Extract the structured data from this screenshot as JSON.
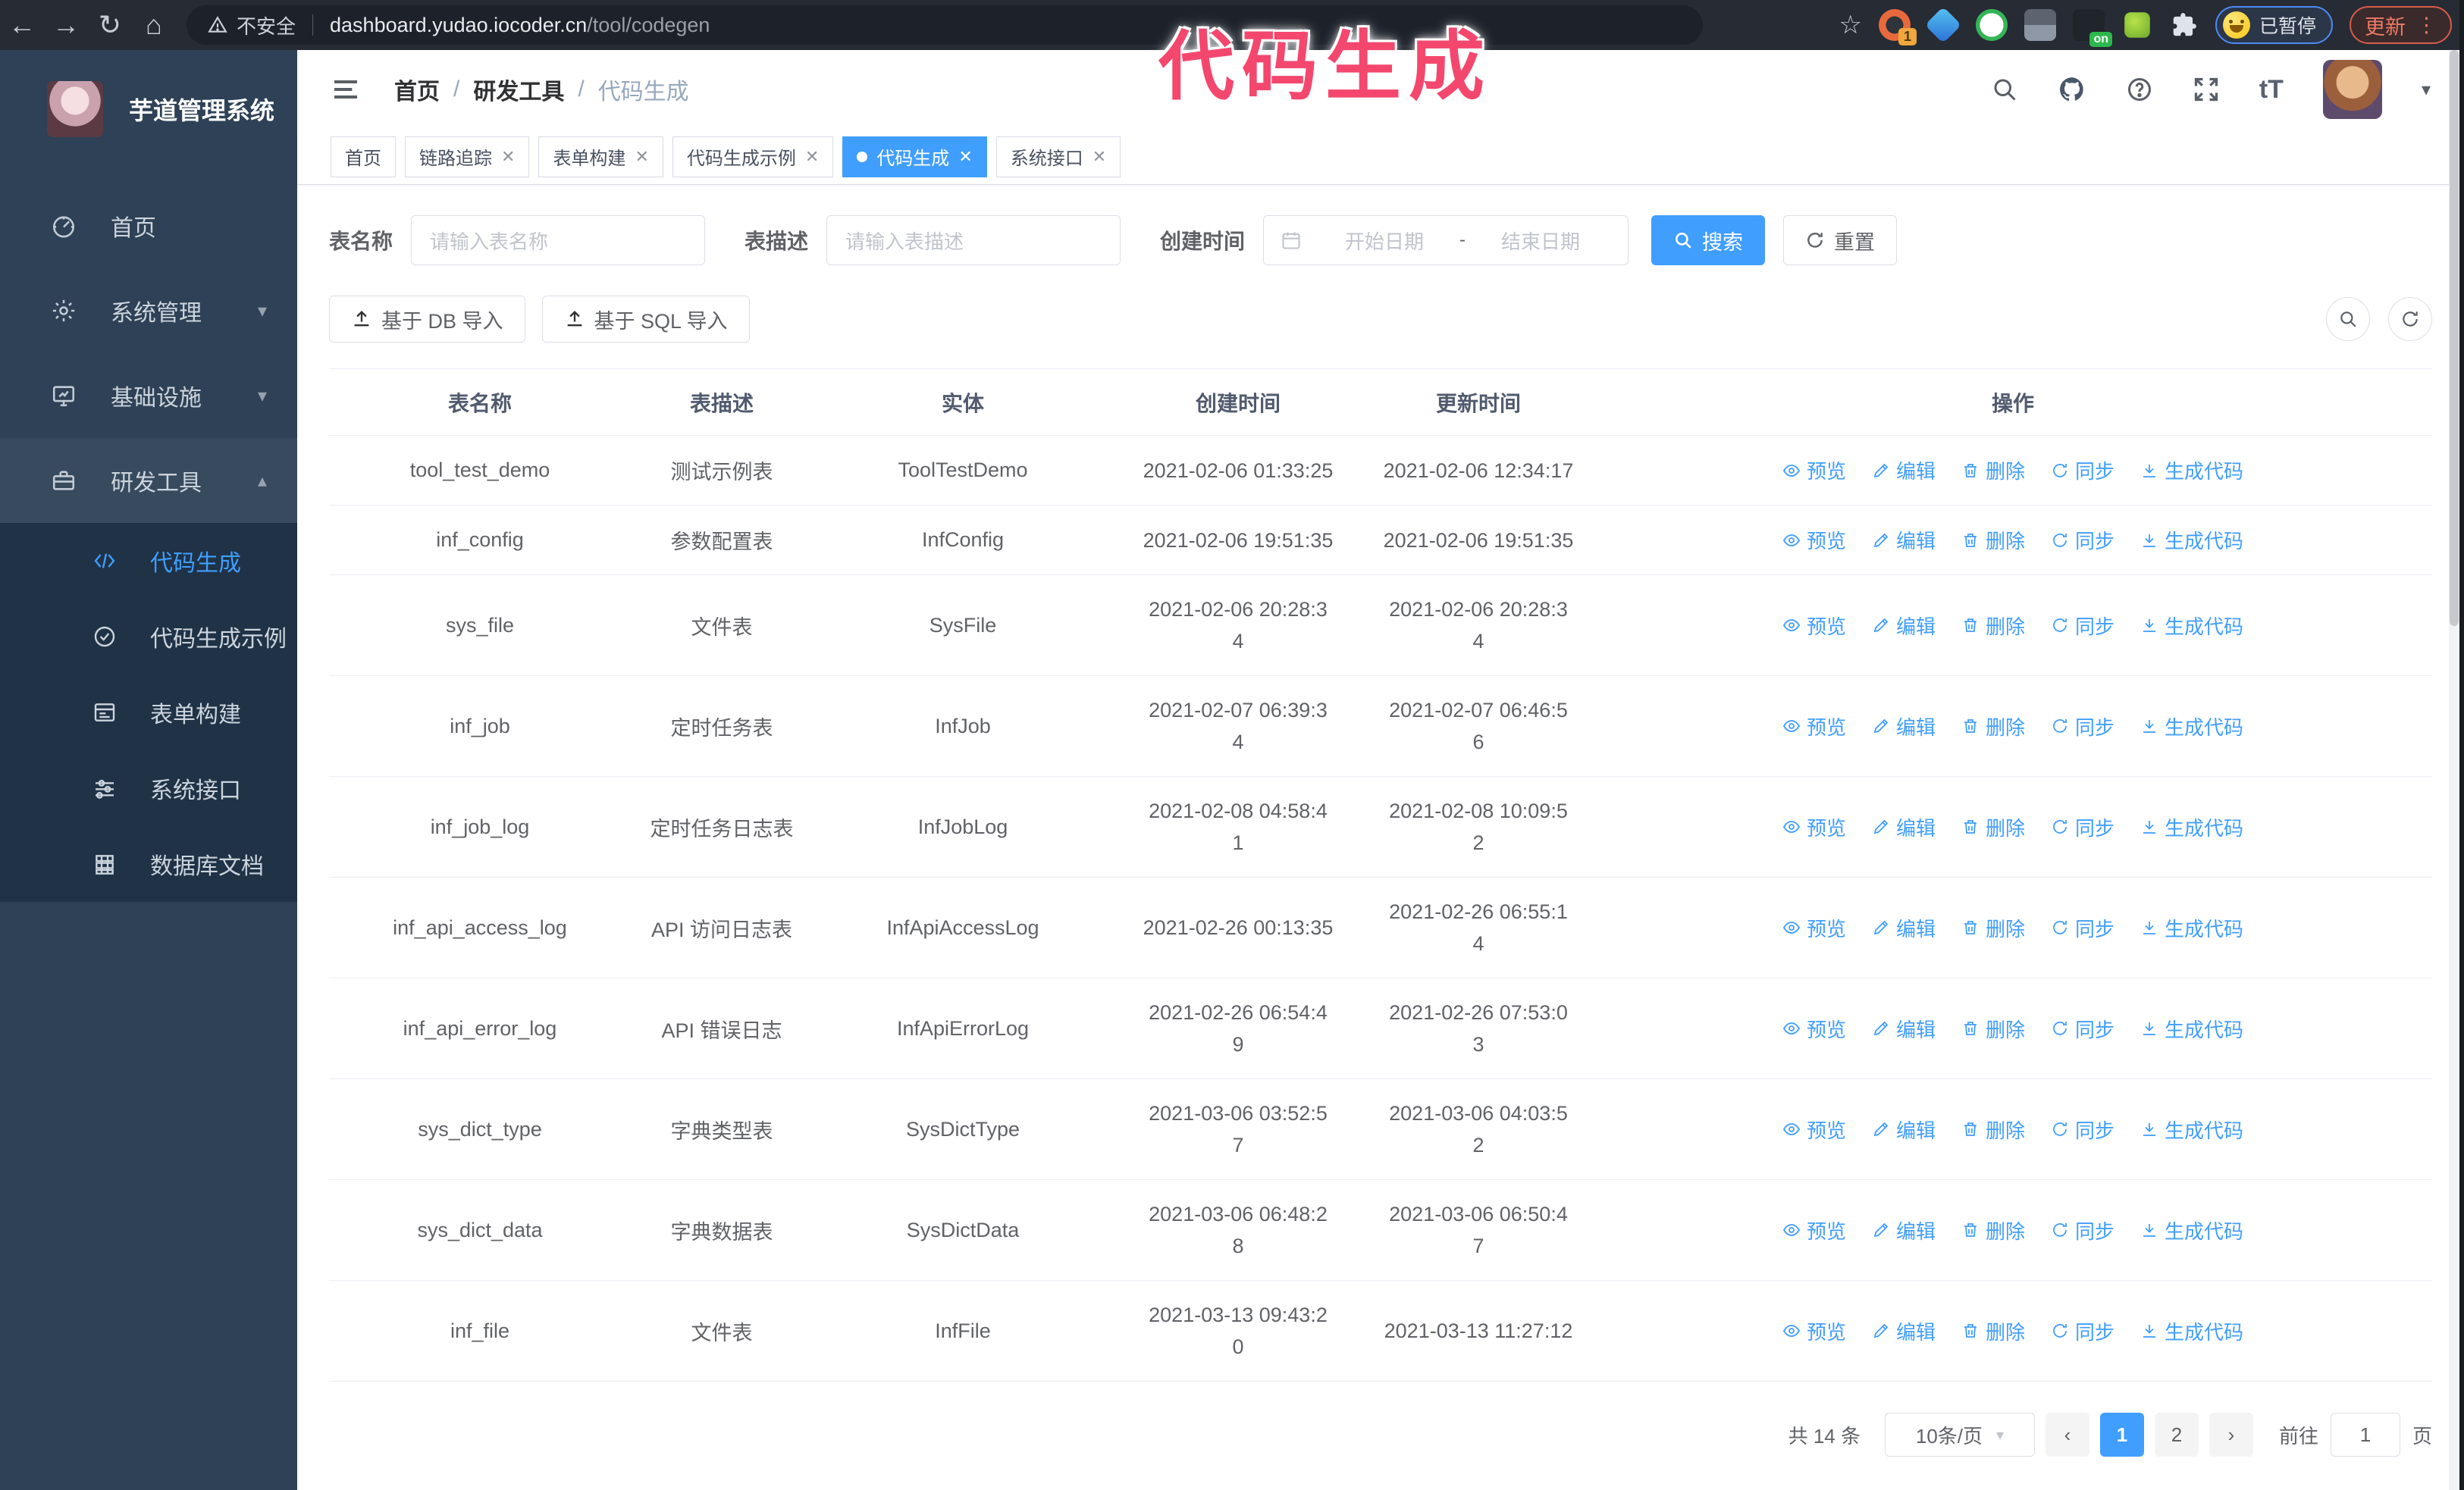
{
  "browser": {
    "not_secure": "不安全",
    "url_domain": "dashboard.yudao.iocoder.cn",
    "url_path": "/tool/codegen",
    "ext_badge": "1",
    "ext_on_badge": "on",
    "paused_badge": "已暂停",
    "update_button": "更新"
  },
  "annotation": {
    "text": "代码生成",
    "color": "#f4476e"
  },
  "sidebar": {
    "title": "芋道管理系统",
    "items": [
      {
        "label": "首页"
      },
      {
        "label": "系统管理"
      },
      {
        "label": "基础设施"
      },
      {
        "label": "研发工具"
      }
    ],
    "subitems": [
      {
        "label": "代码生成"
      },
      {
        "label": "代码生成示例"
      },
      {
        "label": "表单构建"
      },
      {
        "label": "系统接口"
      },
      {
        "label": "数据库文档"
      }
    ]
  },
  "header": {
    "breadcrumb": [
      "首页",
      "研发工具",
      "代码生成"
    ],
    "separator": "/"
  },
  "tabs": [
    {
      "label": "首页"
    },
    {
      "label": "链路追踪"
    },
    {
      "label": "表单构建"
    },
    {
      "label": "代码生成示例"
    },
    {
      "label": "代码生成"
    },
    {
      "label": "系统接口"
    }
  ],
  "search": {
    "name_label": "表名称",
    "name_placeholder": "请输入表名称",
    "desc_label": "表描述",
    "desc_placeholder": "请输入表描述",
    "time_label": "创建时间",
    "start_placeholder": "开始日期",
    "range_separator": "-",
    "end_placeholder": "结束日期",
    "search_button": "搜索",
    "reset_button": "重置"
  },
  "toolbar": {
    "import_db": "基于 DB 导入",
    "import_sql": "基于 SQL 导入"
  },
  "table": {
    "headers": [
      "表名称",
      "表描述",
      "实体",
      "创建时间",
      "更新时间",
      "操作"
    ],
    "actions": [
      "预览",
      "编辑",
      "删除",
      "同步",
      "生成代码"
    ],
    "rows": [
      {
        "name": "tool_test_demo",
        "desc": "测试示例表",
        "entity": "ToolTestDemo",
        "created": "2021-02-06 01:33:25",
        "updated": "2021-02-06 12:34:17"
      },
      {
        "name": "inf_config",
        "desc": "参数配置表",
        "entity": "InfConfig",
        "created": "2021-02-06 19:51:35",
        "updated": "2021-02-06 19:51:35"
      },
      {
        "name": "sys_file",
        "desc": "文件表",
        "entity": "SysFile",
        "created": "2021-02-06 20:28:3\n4",
        "updated": "2021-02-06 20:28:3\n4"
      },
      {
        "name": "inf_job",
        "desc": "定时任务表",
        "entity": "InfJob",
        "created": "2021-02-07 06:39:3\n4",
        "updated": "2021-02-07 06:46:5\n6"
      },
      {
        "name": "inf_job_log",
        "desc": "定时任务日志表",
        "entity": "InfJobLog",
        "created": "2021-02-08 04:58:4\n1",
        "updated": "2021-02-08 10:09:5\n2"
      },
      {
        "name": "inf_api_access_log",
        "desc": "API 访问日志表",
        "entity": "InfApiAccessLog",
        "created": "2021-02-26 00:13:35",
        "updated": "2021-02-26 06:55:1\n4"
      },
      {
        "name": "inf_api_error_log",
        "desc": "API 错误日志",
        "entity": "InfApiErrorLog",
        "created": "2021-02-26 06:54:4\n9",
        "updated": "2021-02-26 07:53:0\n3"
      },
      {
        "name": "sys_dict_type",
        "desc": "字典类型表",
        "entity": "SysDictType",
        "created": "2021-03-06 03:52:5\n7",
        "updated": "2021-03-06 04:03:5\n2"
      },
      {
        "name": "sys_dict_data",
        "desc": "字典数据表",
        "entity": "SysDictData",
        "created": "2021-03-06 06:48:2\n8",
        "updated": "2021-03-06 06:50:4\n7"
      },
      {
        "name": "inf_file",
        "desc": "文件表",
        "entity": "InfFile",
        "created": "2021-03-13 09:43:2\n0",
        "updated": "2021-03-13 11:27:12"
      }
    ]
  },
  "pagination": {
    "total": "共 14 条",
    "page_size": "10条/页",
    "pages": [
      "1",
      "2"
    ],
    "goto_label": "前往",
    "goto_value": "1",
    "page_label": "页"
  }
}
